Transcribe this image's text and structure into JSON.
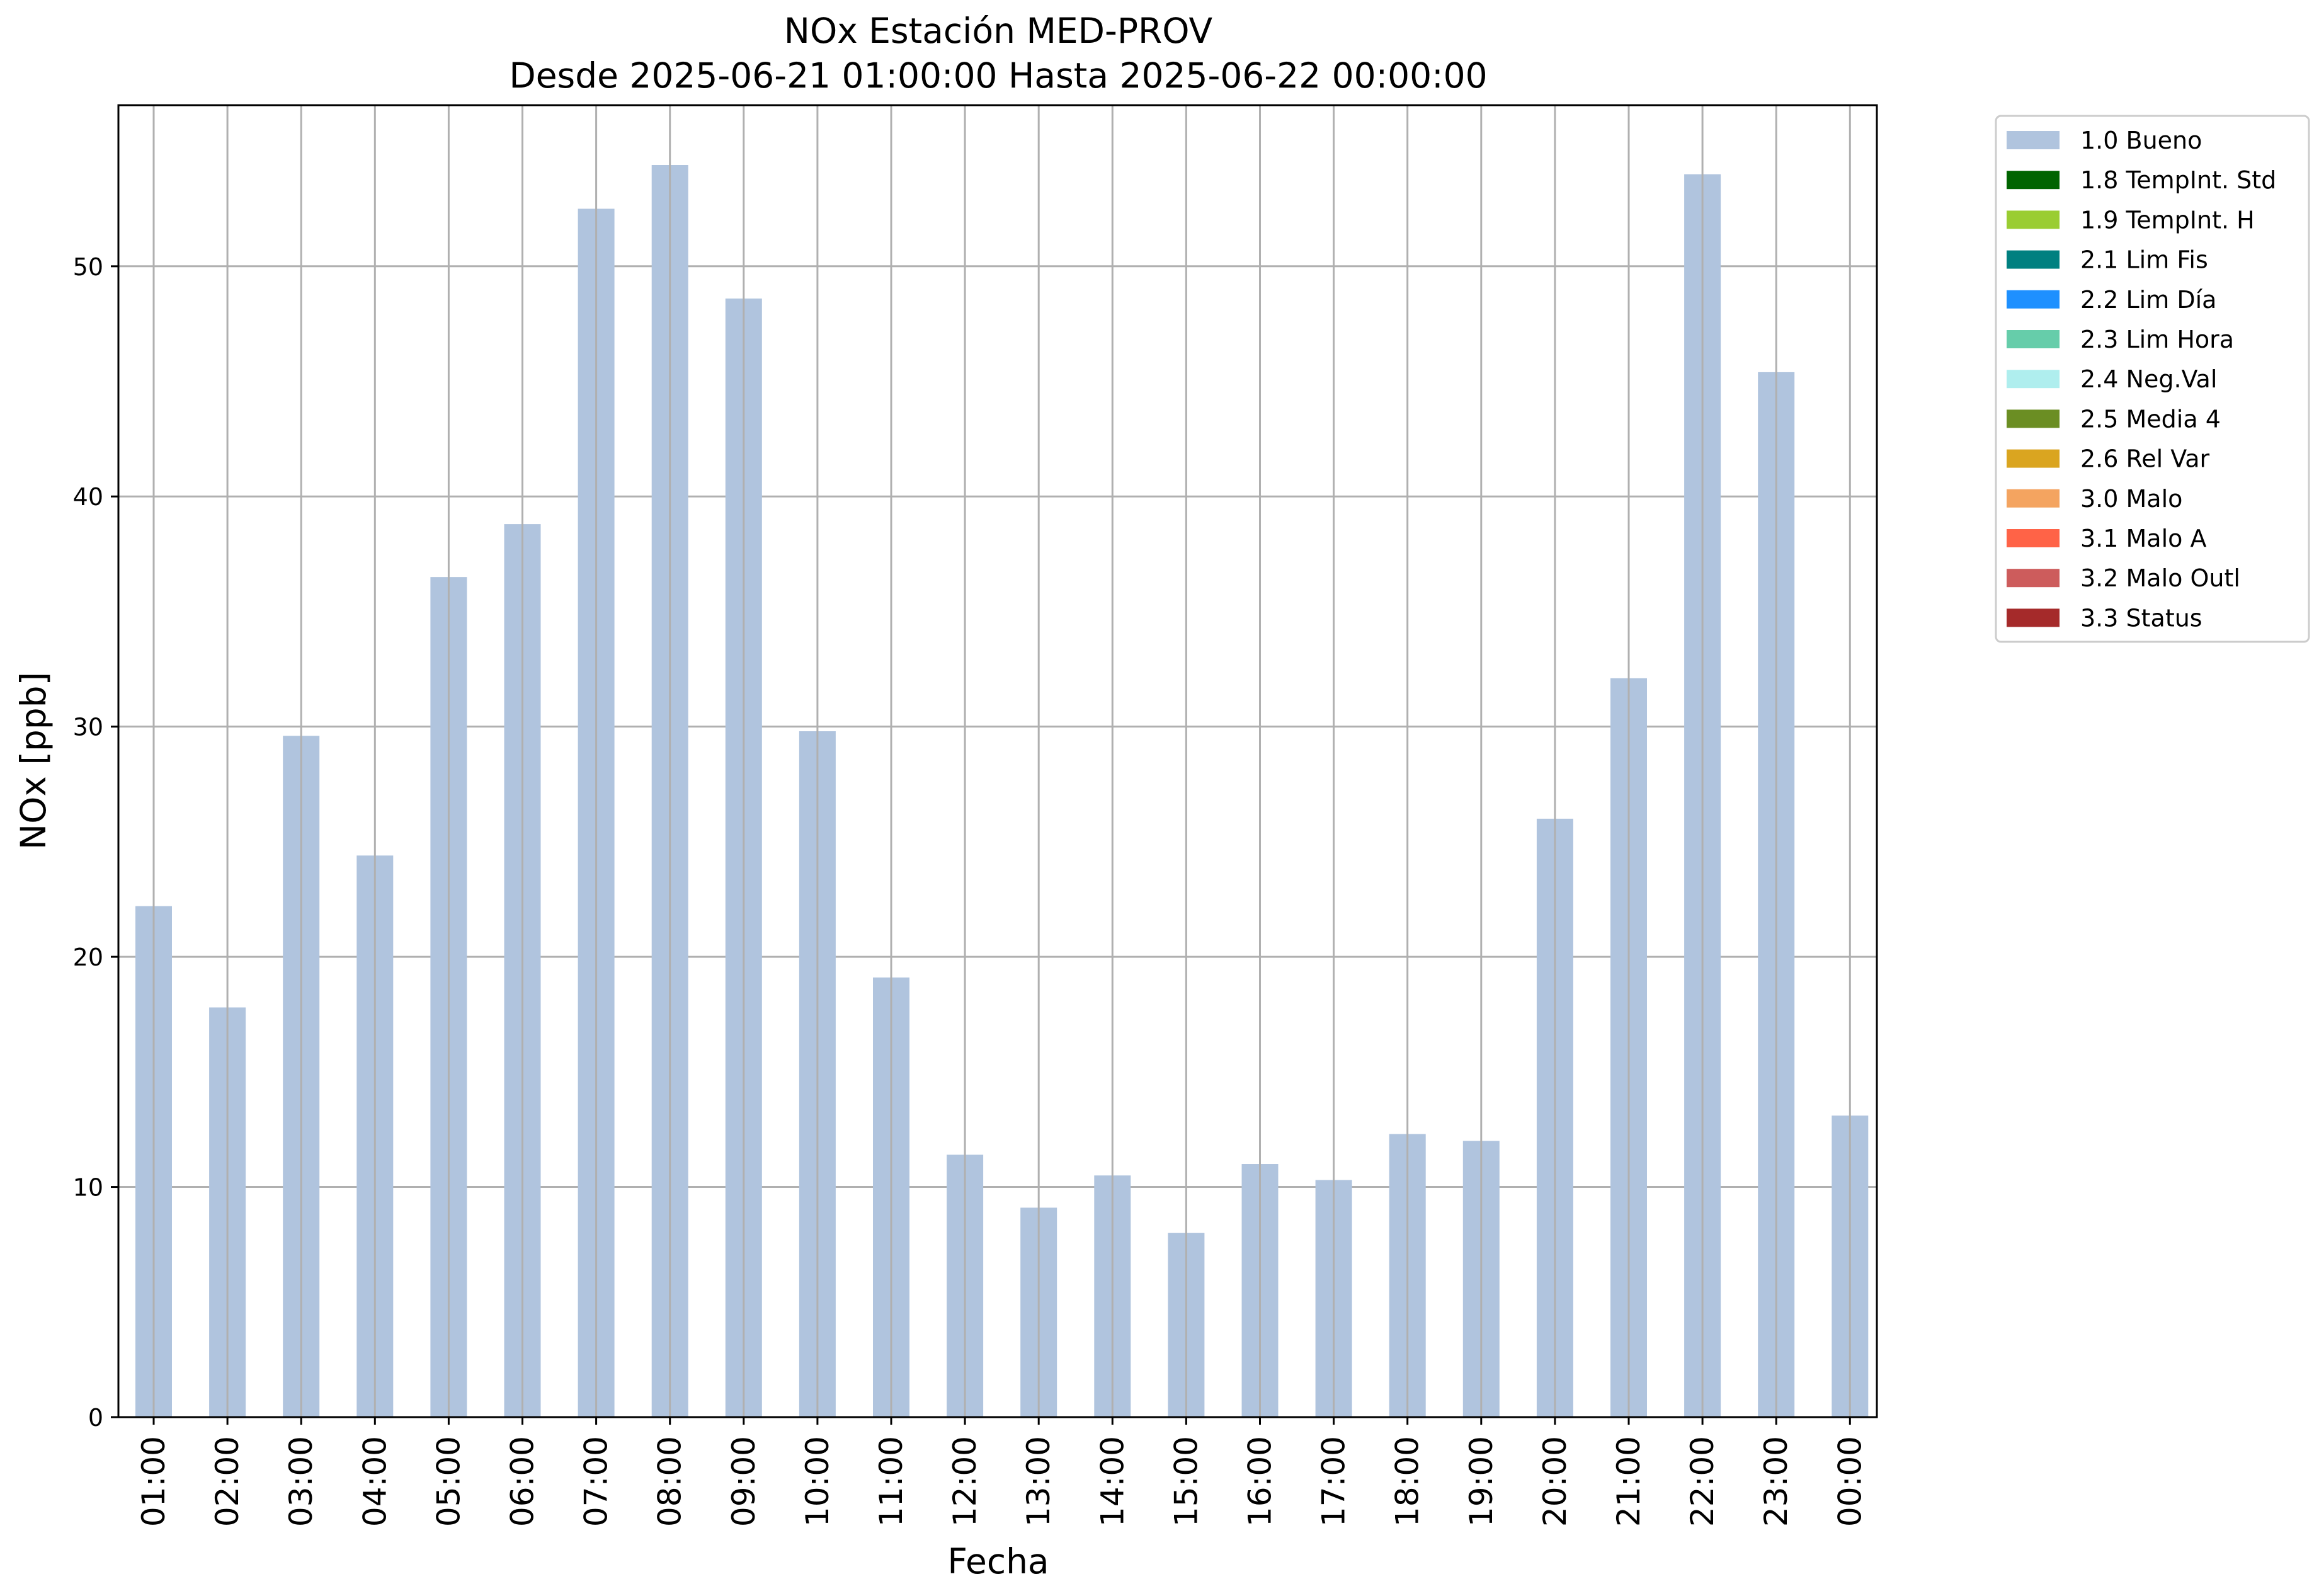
{
  "chart_data": {
    "type": "bar",
    "title_line1": "NOx Estación MED-PROV",
    "title_line2": "Desde 2025-06-21 01:00:00 Hasta 2025-06-22 00:00:00",
    "xlabel": "Fecha",
    "ylabel": "NOx [ppb]",
    "ylim": [
      0,
      57
    ],
    "yticks": [
      0,
      10,
      20,
      30,
      40,
      50
    ],
    "grid": true,
    "legend_position": "outside-top-right",
    "categories": [
      "01:00",
      "02:00",
      "03:00",
      "04:00",
      "05:00",
      "06:00",
      "07:00",
      "08:00",
      "09:00",
      "10:00",
      "11:00",
      "12:00",
      "13:00",
      "14:00",
      "15:00",
      "16:00",
      "17:00",
      "18:00",
      "19:00",
      "20:00",
      "21:00",
      "22:00",
      "23:00",
      "00:00"
    ],
    "series": [
      {
        "name": "1.0 Bueno",
        "color": "#b0c4de",
        "values": [
          22.2,
          17.8,
          29.6,
          24.4,
          36.5,
          38.8,
          52.5,
          54.4,
          48.6,
          29.8,
          19.1,
          11.4,
          9.1,
          10.5,
          8.0,
          11.0,
          10.3,
          12.3,
          12.0,
          26.0,
          32.1,
          54.0,
          45.4,
          13.1
        ]
      }
    ],
    "legend": [
      {
        "label": "1.0 Bueno",
        "color": "#b0c4de"
      },
      {
        "label": "1.8 TempInt. Std",
        "color": "#006400"
      },
      {
        "label": "1.9 TempInt. H",
        "color": "#9acd32"
      },
      {
        "label": "2.1 Lim Fis",
        "color": "#008080"
      },
      {
        "label": "2.2 Lim Día",
        "color": "#1e90ff"
      },
      {
        "label": "2.3 Lim Hora",
        "color": "#66cdaa"
      },
      {
        "label": "2.4 Neg.Val",
        "color": "#afeeee"
      },
      {
        "label": "2.5 Media 4",
        "color": "#6b8e23"
      },
      {
        "label": "2.6 Rel Var",
        "color": "#daa520"
      },
      {
        "label": "3.0 Malo",
        "color": "#f4a460"
      },
      {
        "label": "3.1 Malo A",
        "color": "#ff6347"
      },
      {
        "label": "3.2 Malo Outl",
        "color": "#cd5c5c"
      },
      {
        "label": "3.3 Status",
        "color": "#a52a2a"
      }
    ]
  }
}
